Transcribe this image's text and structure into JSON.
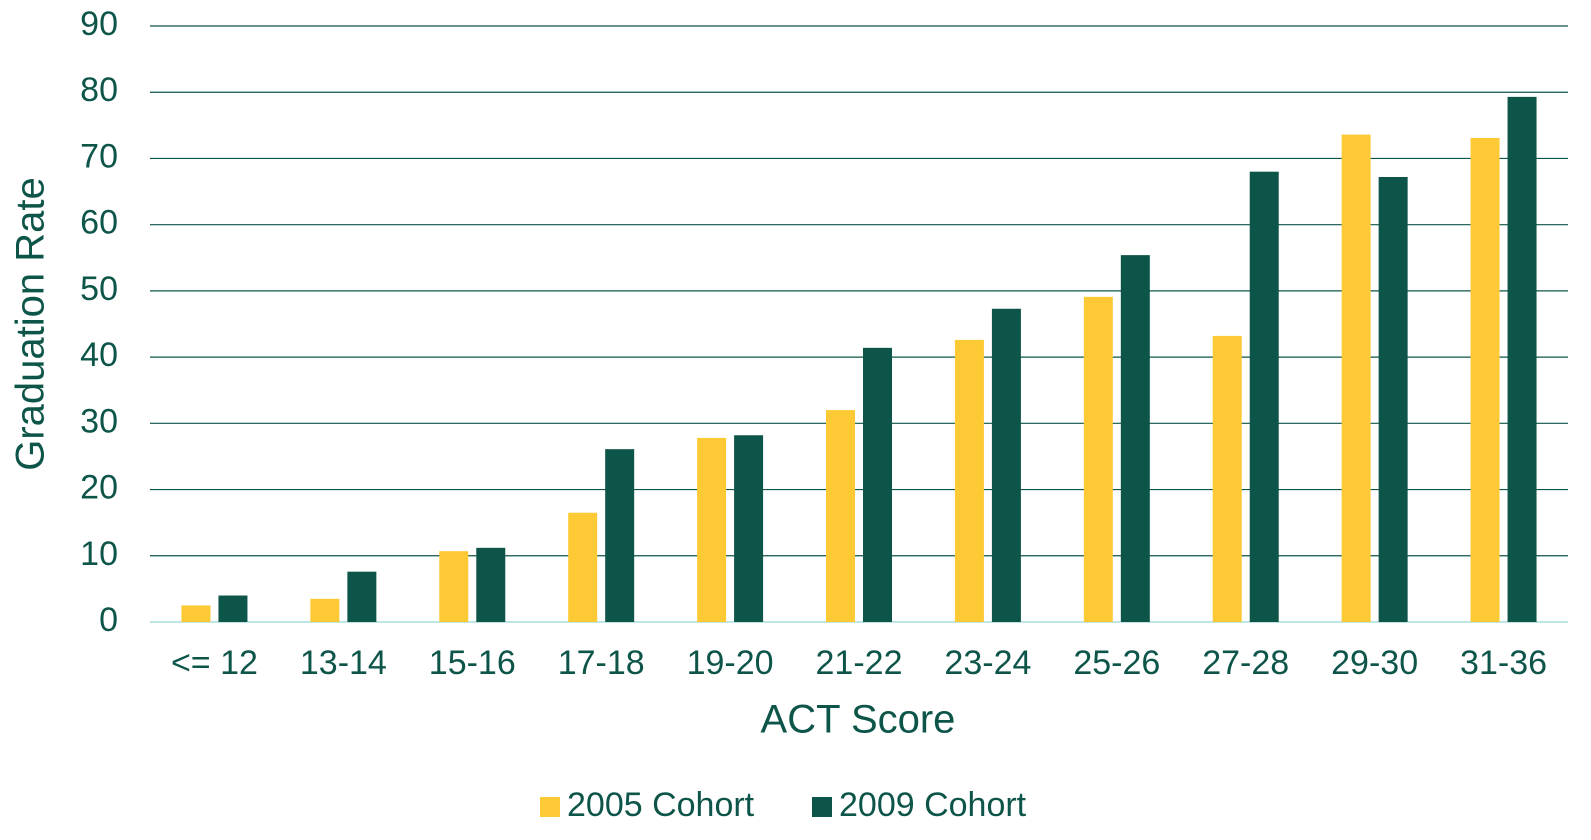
{
  "chart_data": {
    "type": "bar",
    "x_label": "ACT Score",
    "y_label": "Graduation Rate",
    "categories": [
      "<= 12",
      "13-14",
      "15-16",
      "17-18",
      "19-20",
      "21-22",
      "23-24",
      "25-26",
      "27-28",
      "29-30",
      "31-36"
    ],
    "series": [
      {
        "name": "2005 Cohort",
        "color": "#fdca35",
        "values": [
          2.5,
          3.5,
          10.7,
          16.5,
          27.8,
          32,
          42.6,
          49.1,
          43.2,
          73.6,
          73.1
        ]
      },
      {
        "name": "2009 Cohort",
        "color": "#0e5549",
        "values": [
          4,
          7.6,
          11.2,
          26.1,
          28.2,
          41.4,
          47.3,
          55.4,
          68,
          67.2,
          79.3
        ]
      }
    ],
    "ylim": [
      0,
      90
    ],
    "yticks": [
      0,
      10,
      20,
      30,
      40,
      50,
      60,
      70,
      80,
      90
    ],
    "grid": true,
    "legend": "bottom"
  }
}
